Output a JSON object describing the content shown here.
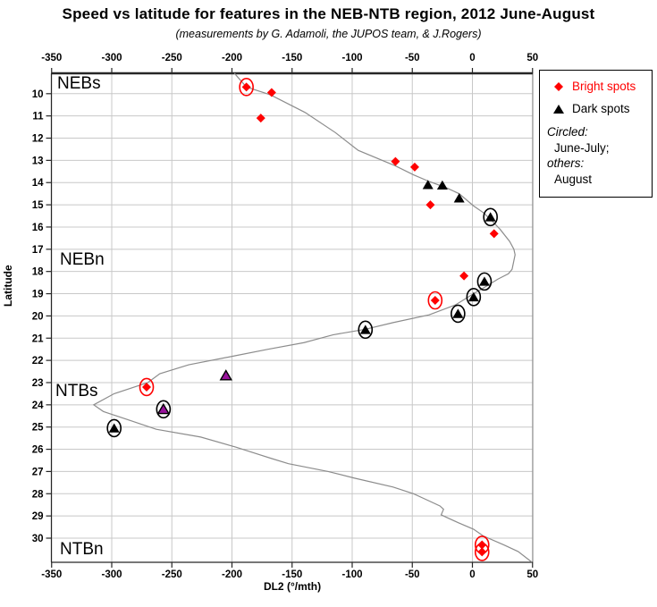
{
  "title": "Speed vs latitude for features in the NEB-NTB region, 2012 June-August",
  "subtitle": "(measurements by G. Adamoli, the JUPOS team, & J.Rogers)",
  "axes": {
    "x_label": "DL2 (°/mth)",
    "y_label": "Latitude",
    "x_ticks": [
      -350,
      -300,
      -250,
      -200,
      -150,
      -100,
      -50,
      0,
      50
    ],
    "y_ticks": [
      10,
      11,
      12,
      13,
      14,
      15,
      16,
      17,
      18,
      19,
      20,
      21,
      22,
      23,
      24,
      25,
      26,
      27,
      28,
      29,
      30
    ],
    "x_range": [
      -350,
      50
    ],
    "y_range": [
      9,
      31.1
    ],
    "y_inverted": true,
    "grid": "both"
  },
  "region_labels": {
    "nebs": "NEBs",
    "nebn": "NEBn",
    "ntbs": "NTBs",
    "ntbn": "NTBn"
  },
  "legend": {
    "bright_label": "Bright spots",
    "dark_label": "Dark spots",
    "circled_heading": "Circled:",
    "circled_value": "June-July;",
    "others_heading": "others:",
    "others_value": "August"
  },
  "colors": {
    "bright": "#ff0000",
    "dark": "#000000",
    "purple_fill": "#98139b",
    "curve": "#8c8c8c",
    "grid": "#c8c8c8",
    "border": "#7f7f7f",
    "axis": "#262626"
  },
  "chart_data": {
    "type": "scatter",
    "title": "Speed vs latitude for features in the NEB-NTB region, 2012 June-August",
    "xlabel": "DL2 (°/mth)",
    "ylabel": "Latitude",
    "xlim": [
      -350,
      50
    ],
    "ylim": [
      9,
      31.1
    ],
    "legend_position": "top-right",
    "series": [
      {
        "name": "Bright spots",
        "marker": "diamond",
        "color": "#ff0000",
        "circle_color": "#ff0000",
        "points": [
          {
            "dl2": -188,
            "lat": 9.7,
            "circled": true
          },
          {
            "dl2": -167,
            "lat": 9.95,
            "circled": false
          },
          {
            "dl2": -176,
            "lat": 11.1,
            "circled": false
          },
          {
            "dl2": -64,
            "lat": 13.05,
            "circled": false
          },
          {
            "dl2": -48,
            "lat": 13.3,
            "circled": false
          },
          {
            "dl2": -35,
            "lat": 15.0,
            "circled": false
          },
          {
            "dl2": 18,
            "lat": 16.3,
            "circled": false
          },
          {
            "dl2": -7,
            "lat": 18.2,
            "circled": false
          },
          {
            "dl2": -31,
            "lat": 19.3,
            "circled": true
          },
          {
            "dl2": -271,
            "lat": 23.2,
            "circled": true
          },
          {
            "dl2": 8,
            "lat": 30.3,
            "circled": true
          },
          {
            "dl2": 8,
            "lat": 30.62,
            "circled": true
          }
        ]
      },
      {
        "name": "Dark spots",
        "marker": "triangle",
        "color": "#000000",
        "circle_color": "#000000",
        "points": [
          {
            "dl2": -37,
            "lat": 14.1,
            "circled": false
          },
          {
            "dl2": -25,
            "lat": 14.12,
            "circled": false
          },
          {
            "dl2": -11,
            "lat": 14.7,
            "circled": false
          },
          {
            "dl2": 15,
            "lat": 15.55,
            "circled": true
          },
          {
            "dl2": 10,
            "lat": 18.45,
            "circled": true
          },
          {
            "dl2": 1,
            "lat": 19.15,
            "circled": true
          },
          {
            "dl2": -12,
            "lat": 19.9,
            "circled": true
          },
          {
            "dl2": -89,
            "lat": 20.62,
            "circled": true
          },
          {
            "dl2": -205,
            "lat": 22.68,
            "circled": false,
            "fill": "#98139b"
          },
          {
            "dl2": -257,
            "lat": 24.2,
            "circled": true,
            "fill": "#98139b"
          },
          {
            "dl2": -298,
            "lat": 25.05,
            "circled": true
          }
        ]
      }
    ],
    "curve": {
      "name": "zonal-wind-profile",
      "color": "#8c8c8c",
      "points": [
        [
          -198,
          9.08
        ],
        [
          -188,
          9.7
        ],
        [
          -168,
          10.05
        ],
        [
          -139,
          10.85
        ],
        [
          -114,
          11.75
        ],
        [
          -95,
          12.55
        ],
        [
          -64,
          13.25
        ],
        [
          -49,
          13.65
        ],
        [
          -36,
          13.95
        ],
        [
          -21,
          14.25
        ],
        [
          -11,
          14.5
        ],
        [
          1,
          15.05
        ],
        [
          9,
          15.35
        ],
        [
          15,
          15.65
        ],
        [
          23,
          16.1
        ],
        [
          31,
          16.65
        ],
        [
          34.5,
          17.0
        ],
        [
          35.5,
          17.25
        ],
        [
          33,
          17.9
        ],
        [
          30,
          18.1
        ],
        [
          21,
          18.35
        ],
        [
          12,
          18.65
        ],
        [
          1,
          19.0
        ],
        [
          -14,
          19.5
        ],
        [
          -36,
          19.95
        ],
        [
          -66,
          20.3
        ],
        [
          -89,
          20.6
        ],
        [
          -116,
          20.85
        ],
        [
          -140,
          21.2
        ],
        [
          -170,
          21.5
        ],
        [
          -198,
          21.8
        ],
        [
          -236,
          22.2
        ],
        [
          -260,
          22.6
        ],
        [
          -270,
          23.0
        ],
        [
          -298,
          23.5
        ],
        [
          -315,
          24.0
        ],
        [
          -307,
          24.3
        ],
        [
          -285,
          24.7
        ],
        [
          -263,
          25.1
        ],
        [
          -226,
          25.45
        ],
        [
          -197,
          25.9
        ],
        [
          -168,
          26.4
        ],
        [
          -153,
          26.65
        ],
        [
          -120,
          27.0
        ],
        [
          -98,
          27.3
        ],
        [
          -66,
          27.7
        ],
        [
          -49,
          28.0
        ],
        [
          -41,
          28.2
        ],
        [
          -27,
          28.55
        ],
        [
          -24,
          28.7
        ],
        [
          -26,
          28.95
        ],
        [
          -12,
          29.3
        ],
        [
          1,
          29.6
        ],
        [
          9,
          29.9
        ],
        [
          26,
          30.3
        ],
        [
          38,
          30.6
        ],
        [
          49.5,
          31.08
        ]
      ]
    }
  }
}
